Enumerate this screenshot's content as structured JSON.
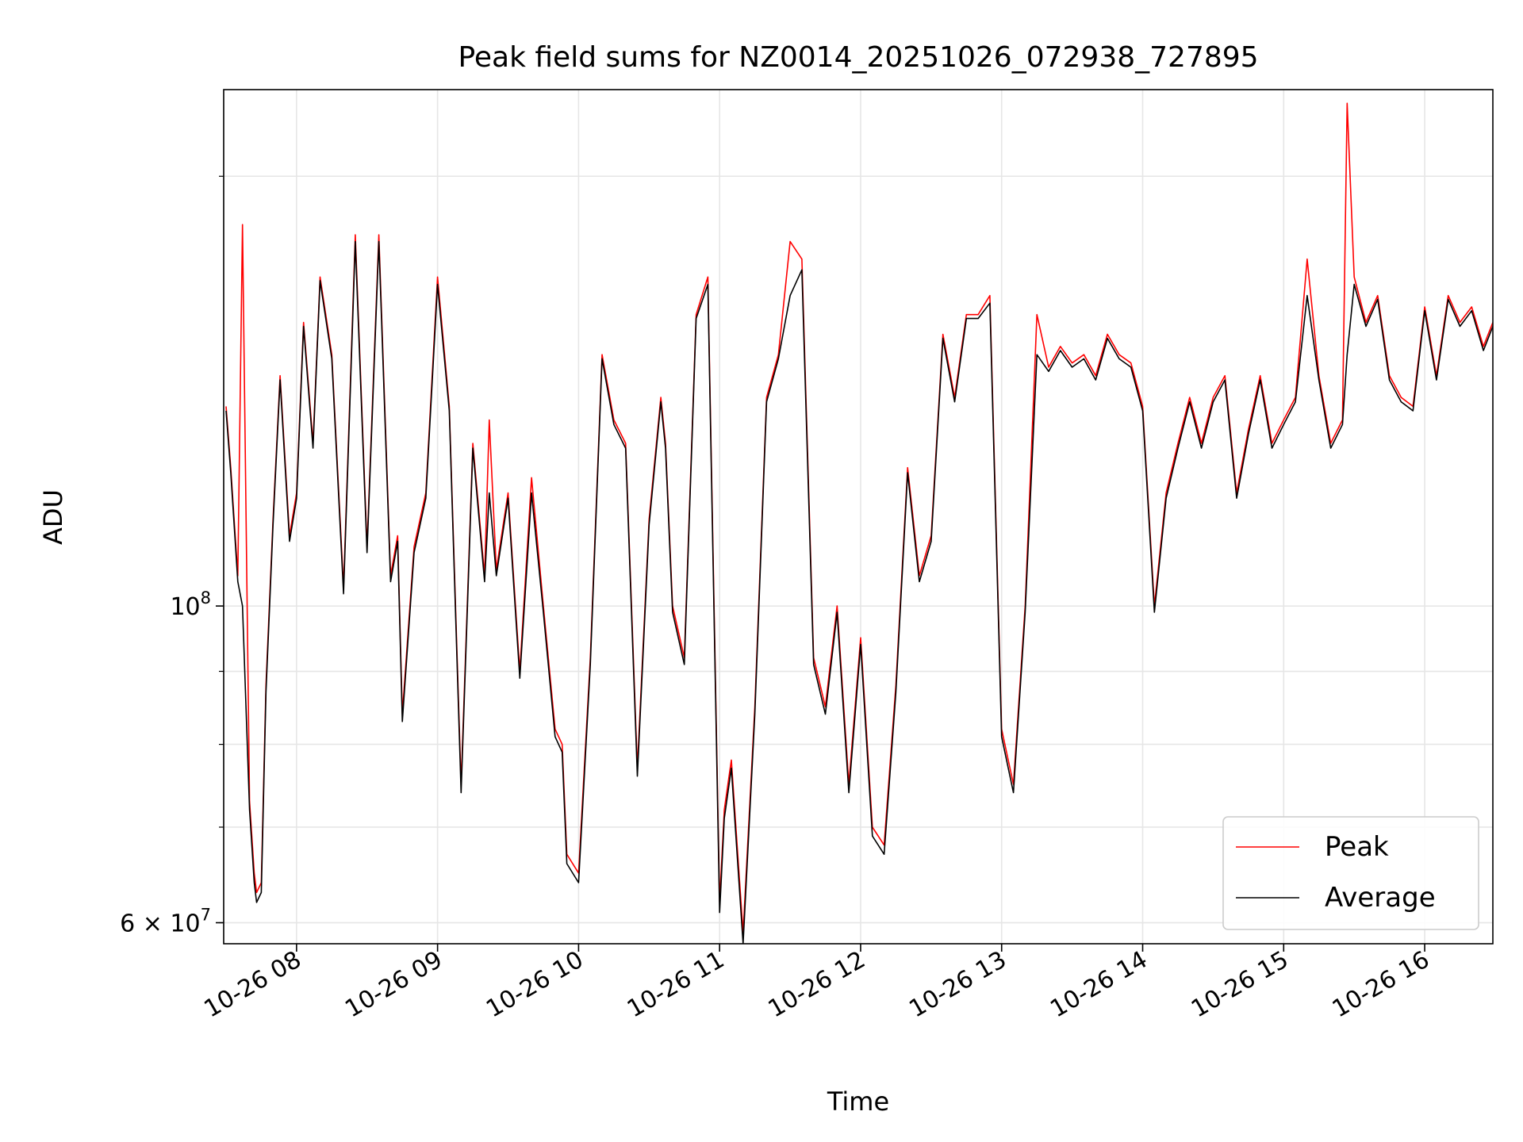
{
  "chart_data": {
    "type": "line",
    "title": "Peak field sums for NZ0014_20251026_072938_727895",
    "xlabel": "Time",
    "ylabel": "ADU",
    "yscale": "log",
    "xlim": [
      "2025-10-26 07:29",
      "2025-10-26 16:29"
    ],
    "ylim": [
      58000000,
      230000000
    ],
    "x_ticks": [
      "10-26 08",
      "10-26 09",
      "10-26 10",
      "10-26 11",
      "10-26 12",
      "10-26 13",
      "10-26 14",
      "10-26 15",
      "10-26 16"
    ],
    "y_ticks": [
      {
        "value": 100000000,
        "label": "10",
        "exp": "8"
      },
      {
        "value": 60000000,
        "label": "6 × 10",
        "exp": "7"
      }
    ],
    "grid": true,
    "legend": "lower-right",
    "colors": {
      "peak": "#ff0000",
      "average": "#000000",
      "grid": "#e6e6e6"
    },
    "series": [
      {
        "name": "Peak",
        "times": [
          "07:30",
          "07:32",
          "07:35",
          "07:37",
          "07:40",
          "07:42",
          "07:43",
          "07:45",
          "07:47",
          "07:50",
          "07:53",
          "07:57",
          "08:00",
          "08:03",
          "08:07",
          "08:10",
          "08:15",
          "08:20",
          "08:25",
          "08:30",
          "08:35",
          "08:40",
          "08:43",
          "08:45",
          "08:50",
          "08:55",
          "09:00",
          "09:05",
          "09:10",
          "09:15",
          "09:20",
          "09:22",
          "09:25",
          "09:30",
          "09:35",
          "09:40",
          "09:45",
          "09:50",
          "09:53",
          "09:55",
          "10:00",
          "10:05",
          "10:10",
          "10:15",
          "10:20",
          "10:25",
          "10:30",
          "10:35",
          "10:37",
          "10:40",
          "10:45",
          "10:50",
          "10:55",
          "11:00",
          "11:02",
          "11:05",
          "11:10",
          "11:15",
          "11:20",
          "11:25",
          "11:30",
          "11:35",
          "11:40",
          "11:45",
          "11:50",
          "11:55",
          "12:00",
          "12:05",
          "12:10",
          "12:15",
          "12:20",
          "12:25",
          "12:30",
          "12:35",
          "12:40",
          "12:45",
          "12:50",
          "12:55",
          "13:00",
          "13:05",
          "13:10",
          "13:15",
          "13:20",
          "13:25",
          "13:30",
          "13:35",
          "13:40",
          "13:45",
          "13:50",
          "13:55",
          "14:00",
          "14:05",
          "14:10",
          "14:15",
          "14:20",
          "14:25",
          "14:30",
          "14:35",
          "14:40",
          "14:45",
          "14:50",
          "14:55",
          "15:00",
          "15:05",
          "15:10",
          "15:15",
          "15:20",
          "15:25",
          "15:27",
          "15:30",
          "15:35",
          "15:40",
          "15:45",
          "15:50",
          "15:55",
          "16:00",
          "16:05",
          "16:10",
          "16:15",
          "16:20",
          "16:25",
          "16:29"
        ],
        "values": [
          138000000,
          125000000,
          105000000,
          185000000,
          73000000,
          65000000,
          63000000,
          64000000,
          88000000,
          115000000,
          145000000,
          112000000,
          120000000,
          158000000,
          130000000,
          170000000,
          150000000,
          103000000,
          182000000,
          110000000,
          182000000,
          105000000,
          112000000,
          84000000,
          110000000,
          120000000,
          170000000,
          138000000,
          75000000,
          130000000,
          105000000,
          135000000,
          106000000,
          120000000,
          90000000,
          123000000,
          100000000,
          82000000,
          80000000,
          67000000,
          65000000,
          92000000,
          150000000,
          135000000,
          130000000,
          77000000,
          115000000,
          140000000,
          130000000,
          100000000,
          92000000,
          160000000,
          170000000,
          62000000,
          72000000,
          78000000,
          59000000,
          85000000,
          140000000,
          150000000,
          180000000,
          175000000,
          92000000,
          85000000,
          100000000,
          75000000,
          95000000,
          70000000,
          68000000,
          88000000,
          125000000,
          105000000,
          112000000,
          155000000,
          140000000,
          160000000,
          160000000,
          165000000,
          82000000,
          75000000,
          100000000,
          160000000,
          147000000,
          152000000,
          148000000,
          150000000,
          145000000,
          155000000,
          150000000,
          148000000,
          138000000,
          100000000,
          120000000,
          130000000,
          140000000,
          130000000,
          140000000,
          145000000,
          120000000,
          133000000,
          145000000,
          130000000,
          135000000,
          140000000,
          175000000,
          145000000,
          130000000,
          135000000,
          225000000,
          170000000,
          158000000,
          165000000,
          145000000,
          140000000,
          138000000,
          162000000,
          145000000,
          165000000,
          158000000,
          162000000,
          152000000,
          158000000
        ],
        "color": "#ff0000"
      },
      {
        "name": "Average",
        "times": [
          "07:30",
          "07:32",
          "07:35",
          "07:37",
          "07:40",
          "07:42",
          "07:43",
          "07:45",
          "07:47",
          "07:50",
          "07:53",
          "07:57",
          "08:00",
          "08:03",
          "08:07",
          "08:10",
          "08:15",
          "08:20",
          "08:25",
          "08:30",
          "08:35",
          "08:40",
          "08:43",
          "08:45",
          "08:50",
          "08:55",
          "09:00",
          "09:05",
          "09:10",
          "09:15",
          "09:20",
          "09:22",
          "09:25",
          "09:30",
          "09:35",
          "09:40",
          "09:45",
          "09:50",
          "09:53",
          "09:55",
          "10:00",
          "10:05",
          "10:10",
          "10:15",
          "10:20",
          "10:25",
          "10:30",
          "10:35",
          "10:37",
          "10:40",
          "10:45",
          "10:50",
          "10:55",
          "11:00",
          "11:02",
          "11:05",
          "11:10",
          "11:15",
          "11:20",
          "11:25",
          "11:30",
          "11:35",
          "11:40",
          "11:45",
          "11:50",
          "11:55",
          "12:00",
          "12:05",
          "12:10",
          "12:15",
          "12:20",
          "12:25",
          "12:30",
          "12:35",
          "12:40",
          "12:45",
          "12:50",
          "12:55",
          "13:00",
          "13:05",
          "13:10",
          "13:15",
          "13:20",
          "13:25",
          "13:30",
          "13:35",
          "13:40",
          "13:45",
          "13:50",
          "13:55",
          "14:00",
          "14:05",
          "14:10",
          "14:15",
          "14:20",
          "14:25",
          "14:30",
          "14:35",
          "14:40",
          "14:45",
          "14:50",
          "14:55",
          "15:00",
          "15:05",
          "15:10",
          "15:15",
          "15:20",
          "15:25",
          "15:27",
          "15:30",
          "15:35",
          "15:40",
          "15:45",
          "15:50",
          "15:55",
          "16:00",
          "16:05",
          "16:10",
          "16:15",
          "16:20",
          "16:25",
          "16:29"
        ],
        "values": [
          137000000,
          124000000,
          104000000,
          100000000,
          72000000,
          64000000,
          62000000,
          63000000,
          87000000,
          114000000,
          144000000,
          111000000,
          119000000,
          157000000,
          129000000,
          169000000,
          149000000,
          102000000,
          180000000,
          109000000,
          180000000,
          104000000,
          111000000,
          83000000,
          109000000,
          119000000,
          168000000,
          137000000,
          74000000,
          129000000,
          104000000,
          120000000,
          105000000,
          119000000,
          89000000,
          120000000,
          99000000,
          81000000,
          79000000,
          66000000,
          64000000,
          91000000,
          149000000,
          134000000,
          129000000,
          76000000,
          114000000,
          139000000,
          129000000,
          99000000,
          91000000,
          159000000,
          168000000,
          61000000,
          71000000,
          77000000,
          58000000,
          84000000,
          139000000,
          149000000,
          165000000,
          172000000,
          91000000,
          84000000,
          99000000,
          74000000,
          94000000,
          69000000,
          67000000,
          87000000,
          124000000,
          104000000,
          111000000,
          154000000,
          139000000,
          159000000,
          159000000,
          163000000,
          81000000,
          74000000,
          99000000,
          150000000,
          146000000,
          151000000,
          147000000,
          149000000,
          144000000,
          154000000,
          149000000,
          147000000,
          137000000,
          99000000,
          119000000,
          129000000,
          139000000,
          129000000,
          139000000,
          144000000,
          119000000,
          132000000,
          144000000,
          129000000,
          134000000,
          139000000,
          165000000,
          144000000,
          129000000,
          134000000,
          150000000,
          168000000,
          157000000,
          164000000,
          144000000,
          139000000,
          137000000,
          161000000,
          144000000,
          164000000,
          157000000,
          161000000,
          151000000,
          157000000
        ],
        "color": "#000000"
      }
    ]
  }
}
